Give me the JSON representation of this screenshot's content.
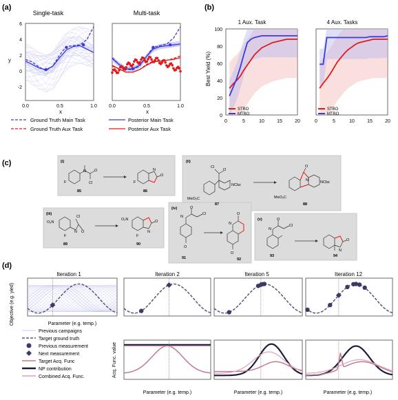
{
  "panels": {
    "a": "(a)",
    "b": "(b)",
    "c": "(c)",
    "d": "(d)"
  },
  "colors": {
    "blue": "#3a3ad6",
    "red": "#e11919",
    "red_light": "#f4b7b7",
    "blue_light": "#b9b9f0",
    "purple": "#9080c8",
    "navy": "#1c1c3c",
    "pink": "#c07a8e",
    "gray_box": "#dcdcdc"
  },
  "panel_a": {
    "titles": [
      "Single-task",
      "Multi-task"
    ],
    "ylabel": "y",
    "xlabel": "x",
    "y_ticks": [
      "6",
      "4",
      "2",
      "0",
      "-2"
    ],
    "x_ticks": [
      "0.0",
      "0.5",
      "1.0"
    ],
    "legend": [
      {
        "label": "Ground Truth Main Task",
        "style": "dashed",
        "color": "#3a3ad6"
      },
      {
        "label": "Posterior Main Task",
        "style": "solid",
        "color": "#3a3ad6"
      },
      {
        "label": "Ground Truth Aux Task",
        "style": "dashed",
        "color": "#e11919"
      },
      {
        "label": "Posterior Aux Task",
        "style": "solid",
        "color": "#e11919"
      }
    ]
  },
  "chart_data": [
    {
      "type": "line",
      "title": "Single-task",
      "xlabel": "x",
      "ylabel": "y",
      "xlim": [
        0,
        1
      ],
      "ylim": [
        -3,
        6
      ],
      "series": [
        {
          "name": "Ground Truth Main Task",
          "x": [
            0,
            0.1,
            0.2,
            0.3,
            0.4,
            0.5,
            0.6,
            0.7,
            0.8,
            0.9,
            1.0
          ],
          "y": [
            1.8,
            1.5,
            0.9,
            0.5,
            1.0,
            2.3,
            3.3,
            3.4,
            3.5,
            4.1,
            5.6
          ]
        },
        {
          "name": "Posterior Main Task",
          "x": [
            0,
            0.1,
            0.2,
            0.3,
            0.4,
            0.5,
            0.6,
            0.7,
            0.8,
            0.9,
            1.0
          ],
          "y": [
            1.6,
            1.2,
            0.8,
            0.6,
            1.0,
            2.0,
            2.9,
            3.3,
            3.4,
            3.0,
            2.6
          ]
        }
      ],
      "observations": [
        {
          "x": 0.3,
          "y": 0.6
        },
        {
          "x": 0.6,
          "y": 3.2
        },
        {
          "x": 0.85,
          "y": 3.5
        }
      ]
    },
    {
      "type": "line",
      "title": "Multi-task",
      "xlabel": "x",
      "ylabel": "",
      "xlim": [
        0,
        1
      ],
      "ylim": [
        -3,
        6
      ],
      "series": [
        {
          "name": "Ground Truth Main Task",
          "x": [
            0,
            0.1,
            0.2,
            0.3,
            0.4,
            0.5,
            0.6,
            0.7,
            0.8,
            0.9,
            1.0
          ],
          "y": [
            2.0,
            1.2,
            0.6,
            0.6,
            1.0,
            2.1,
            3.2,
            3.4,
            3.6,
            4.3,
            5.6
          ]
        },
        {
          "name": "Posterior Main Task",
          "x": [
            0,
            0.1,
            0.2,
            0.3,
            0.4,
            0.5,
            0.6,
            0.7,
            0.8,
            0.9,
            1.0
          ],
          "y": [
            1.9,
            1.2,
            0.7,
            0.7,
            1.1,
            2.1,
            3.0,
            3.3,
            3.4,
            3.5,
            3.6
          ]
        },
        {
          "name": "Ground Truth Aux Task",
          "x": [
            0,
            0.1,
            0.2,
            0.3,
            0.4,
            0.5,
            0.6,
            0.7,
            0.8,
            0.9,
            1.0
          ],
          "y": [
            1.0,
            0.7,
            0.3,
            0.3,
            0.6,
            1.2,
            1.6,
            1.6,
            1.7,
            1.9,
            2.2
          ]
        },
        {
          "name": "Posterior Aux Task",
          "x": [
            0,
            0.1,
            0.2,
            0.3,
            0.4,
            0.5,
            0.6,
            0.7,
            0.8,
            0.9,
            1.0
          ],
          "y": [
            1.1,
            0.7,
            0.3,
            0.3,
            0.6,
            1.1,
            1.5,
            1.6,
            1.7,
            1.8,
            2.0
          ]
        }
      ],
      "observations": [
        {
          "x": 0.3,
          "y": 0.7
        },
        {
          "x": 0.6,
          "y": 3.2
        },
        {
          "x": 0.85,
          "y": 3.5
        }
      ]
    },
    {
      "type": "line",
      "title": "1 Aux. Task",
      "xlabel": "",
      "ylabel": "Best Yield (%)",
      "xlim": [
        0,
        20
      ],
      "ylim": [
        0,
        100
      ],
      "x_ticks": [
        0,
        5,
        10,
        15,
        20
      ],
      "y_ticks": [
        0,
        20,
        40,
        60,
        80,
        100
      ],
      "legend_placement": "bottom-left",
      "series": [
        {
          "name": "STBO",
          "x": [
            1,
            2,
            3,
            4,
            5,
            6,
            7,
            8,
            9,
            10,
            11,
            12,
            13,
            14,
            15,
            16,
            17,
            18,
            19,
            20
          ],
          "y": [
            31,
            36,
            40,
            45,
            52,
            58,
            64,
            70,
            74,
            78,
            80,
            82,
            84,
            85,
            86,
            87,
            88,
            88,
            88,
            88
          ]
        },
        {
          "name": "MTBO",
          "x": [
            1,
            2,
            3,
            4,
            5,
            6,
            7,
            8,
            9,
            10,
            11,
            12,
            13,
            14,
            15,
            16,
            17,
            18,
            19,
            20
          ],
          "y": [
            22,
            32,
            42,
            55,
            70,
            84,
            88,
            90,
            91,
            92,
            92,
            92,
            92,
            92,
            92,
            92,
            92,
            92,
            92,
            92
          ]
        }
      ]
    },
    {
      "type": "line",
      "title": "4 Aux. Tasks",
      "xlabel": "",
      "ylabel": "",
      "xlim": [
        0,
        20
      ],
      "ylim": [
        0,
        100
      ],
      "x_ticks": [
        0,
        5,
        10,
        15,
        20
      ],
      "legend_placement": "bottom-left",
      "series": [
        {
          "name": "STBO",
          "x": [
            1,
            2,
            3,
            4,
            5,
            6,
            7,
            8,
            9,
            10,
            11,
            12,
            13,
            14,
            15,
            16,
            17,
            18,
            19,
            20
          ],
          "y": [
            31,
            37,
            42,
            48,
            55,
            62,
            67,
            72,
            76,
            79,
            82,
            84,
            85,
            86,
            87,
            88,
            88,
            88,
            88,
            88
          ]
        },
        {
          "name": "MTBO",
          "x": [
            1,
            2,
            3,
            4,
            5,
            6,
            7,
            8,
            9,
            10,
            11,
            12,
            13,
            14,
            15,
            16,
            17,
            18,
            19,
            20
          ],
          "y": [
            59,
            59,
            90,
            90,
            90,
            90,
            90,
            90,
            90,
            90,
            90,
            90,
            90,
            90,
            91,
            91,
            91,
            91,
            91,
            92
          ]
        }
      ]
    }
  ],
  "panel_b": {
    "ylabel": "Best Yield (%)",
    "titles": [
      "1 Aux. Task",
      "4 Aux. Tasks"
    ],
    "y_ticks": [
      "100",
      "80",
      "60",
      "40",
      "20",
      "0"
    ],
    "x_ticks": [
      "0",
      "5",
      "10",
      "15",
      "20"
    ],
    "legend": [
      "STBO",
      "MTBO"
    ]
  },
  "panel_c": {
    "reactions": [
      {
        "tag": "(i)",
        "reactant": "85",
        "product": "86"
      },
      {
        "tag": "(ii)",
        "reactant": "87",
        "product": "88"
      },
      {
        "tag": "(iii)",
        "reactant": "89",
        "product": "90"
      },
      {
        "tag": "(iv)",
        "reactant": "91",
        "product": "92"
      },
      {
        "tag": "(v)",
        "reactant": "93",
        "product": "94"
      }
    ],
    "atoms": {
      "F": "F",
      "Cl": "Cl",
      "N": "N",
      "O": "O",
      "NCbz": "NCbz",
      "MeO2C": "MeO₂C",
      "O2N": "O₂N"
    }
  },
  "panel_d": {
    "titles": [
      "Iteration 1",
      "Iteration 2",
      "Iteration 5",
      "Iteration 12"
    ],
    "ylabel_top": "Objective (e.g. yied)",
    "ylabel_bottom": "Acq. Func. value",
    "xlabel": "Parameter (e.g. temp.)",
    "legend": [
      {
        "label": "Previous campaigns",
        "kind": "thin-line",
        "color": "#b9b9f0"
      },
      {
        "label": "Target ground truth",
        "kind": "dashed",
        "color": "#555577"
      },
      {
        "label": "Previous measurement",
        "kind": "circle",
        "color": "#3a3a66"
      },
      {
        "label": "Next measurement",
        "kind": "diamond",
        "color": "#3a3a66"
      },
      {
        "label": "Target Acq. Func",
        "kind": "line",
        "color": "#c07a8e"
      },
      {
        "label": "NP contribution",
        "kind": "thick-line",
        "color": "#1c1c3c"
      },
      {
        "label": "Combined Acq. Func.",
        "kind": "line",
        "color": "#e0a0b0"
      }
    ]
  }
}
